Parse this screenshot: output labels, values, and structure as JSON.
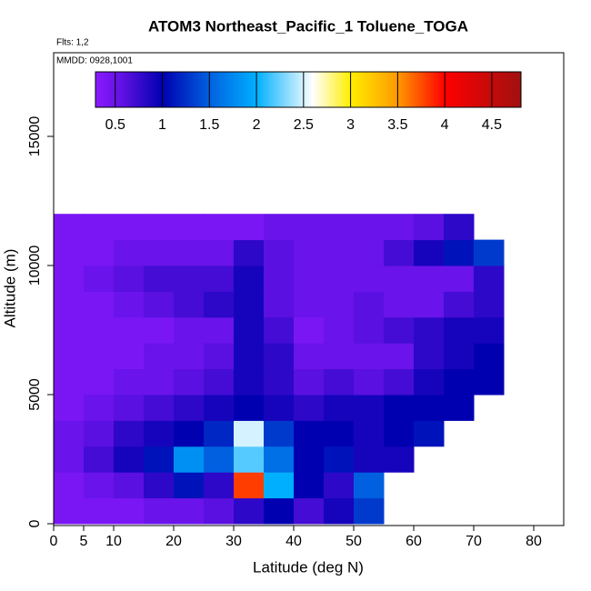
{
  "chart_data": {
    "type": "heatmap",
    "title": "ATOM3 Northeast_Pacific_1 Toluene_TOGA",
    "subtitle": "Flts: 1,2",
    "annotation": "MMDD: 0928,1001",
    "x_label": "Latitude (deg N)",
    "y_label": "Altitude (m)",
    "xlim": [
      0,
      85
    ],
    "xticks": [
      0,
      5,
      10,
      20,
      30,
      40,
      50,
      60,
      70,
      80
    ],
    "ylim": [
      0,
      18240
    ],
    "yticks": [
      0,
      5000,
      10000,
      15000
    ],
    "x_bins": [
      0,
      5,
      10,
      15,
      20,
      25,
      30,
      35,
      40,
      45,
      50,
      55,
      60,
      65,
      70,
      75
    ],
    "y_bins": [
      0,
      1000,
      2000,
      3000,
      4000,
      5000,
      6000,
      7000,
      8000,
      9000,
      10000,
      11000,
      12000
    ],
    "values": [
      [
        0.4,
        0.4,
        0.4,
        0.5,
        0.5,
        0.6,
        0.8,
        1.0,
        0.7,
        0.9,
        1.3,
        null,
        null,
        null,
        null
      ],
      [
        0.4,
        0.5,
        0.6,
        0.8,
        1.1,
        0.8,
        3.8,
        2.0,
        1.0,
        0.8,
        1.5,
        null,
        null,
        null,
        null
      ],
      [
        0.5,
        0.7,
        0.9,
        1.1,
        1.8,
        1.5,
        2.2,
        1.6,
        1.0,
        1.1,
        0.9,
        0.9,
        null,
        null,
        null
      ],
      [
        0.5,
        0.6,
        0.8,
        0.9,
        1.0,
        1.2,
        2.5,
        1.3,
        1.0,
        1.0,
        0.9,
        1.0,
        1.1,
        null,
        null
      ],
      [
        0.4,
        0.5,
        0.6,
        0.7,
        0.8,
        0.9,
        1.0,
        0.9,
        0.8,
        0.9,
        0.9,
        1.0,
        1.0,
        1.0,
        null
      ],
      [
        0.4,
        0.4,
        0.5,
        0.5,
        0.6,
        0.7,
        0.9,
        0.8,
        0.6,
        0.7,
        0.6,
        0.7,
        0.9,
        1.0,
        1.0
      ],
      [
        0.4,
        0.4,
        0.4,
        0.5,
        0.5,
        0.6,
        0.9,
        0.8,
        0.5,
        0.5,
        0.5,
        0.5,
        0.8,
        0.9,
        1.0
      ],
      [
        0.4,
        0.4,
        0.4,
        0.4,
        0.5,
        0.5,
        0.9,
        0.7,
        0.4,
        0.5,
        0.6,
        0.7,
        0.8,
        0.9,
        0.9
      ],
      [
        0.4,
        0.4,
        0.5,
        0.6,
        0.7,
        0.8,
        0.9,
        0.6,
        0.5,
        0.5,
        0.6,
        0.5,
        0.5,
        0.7,
        0.8
      ],
      [
        0.4,
        0.5,
        0.6,
        0.7,
        0.7,
        0.7,
        0.9,
        0.6,
        0.5,
        0.5,
        0.5,
        0.5,
        0.5,
        0.5,
        0.8
      ],
      [
        0.4,
        0.4,
        0.5,
        0.5,
        0.5,
        0.5,
        0.8,
        0.6,
        0.5,
        0.5,
        0.5,
        0.7,
        0.9,
        1.1,
        1.3
      ],
      [
        0.4,
        0.4,
        0.4,
        0.4,
        0.4,
        0.4,
        0.4,
        0.5,
        0.5,
        0.5,
        0.5,
        0.5,
        0.6,
        0.8,
        null
      ]
    ],
    "colorbar": {
      "lim": [
        0.29,
        4.81
      ],
      "ticks": [
        0.5,
        1.0,
        1.5,
        2.0,
        2.5,
        3.0,
        3.5,
        4.0,
        4.5
      ],
      "stops": [
        {
          "value": 0.29,
          "color": "#8c1aff"
        },
        {
          "value": 0.6,
          "color": "#5a10e0"
        },
        {
          "value": 1.0,
          "color": "#0000b0"
        },
        {
          "value": 1.5,
          "color": "#0060e0"
        },
        {
          "value": 2.0,
          "color": "#00b0ff"
        },
        {
          "value": 2.6,
          "color": "#ffffff"
        },
        {
          "value": 3.0,
          "color": "#ffee00"
        },
        {
          "value": 3.5,
          "color": "#ff9900"
        },
        {
          "value": 4.0,
          "color": "#ff0000"
        },
        {
          "value": 4.81,
          "color": "#a01010"
        }
      ]
    }
  }
}
